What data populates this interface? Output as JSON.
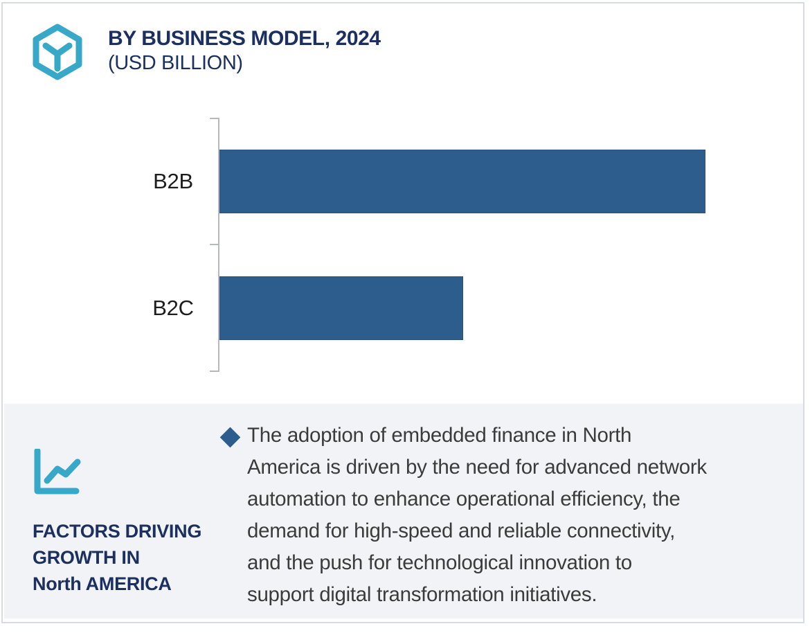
{
  "header": {
    "title": "BY BUSINESS MODEL, 2024",
    "subtitle": "(USD BILLION)",
    "icon": "cube-hexagon",
    "title_color": "#1b3060",
    "accent_teal": "#38a8c9"
  },
  "chart_data": {
    "type": "bar",
    "orientation": "horizontal",
    "title": "BY BUSINESS MODEL, 2024",
    "units_label": "(USD BILLION)",
    "categories": [
      "B2B",
      "B2C"
    ],
    "values_pct_of_max": [
      100,
      50.2
    ],
    "value_labels_shown": false,
    "numeric_axis_shown": false,
    "bar_color": "#2d5d8c",
    "grid": false,
    "legend_position": "none"
  },
  "factors_panel": {
    "background": "#f2f3f7",
    "icon": "line-chart",
    "heading_color": "#1b3060",
    "heading_lines": [
      "FACTORS DRIVING",
      "GROWTH IN",
      "North AMERICA"
    ],
    "bullet_icon": "diamond",
    "bullet_color": "#2d5d8c",
    "bullet_lines": [
      "The adoption of embedded finance in North",
      "America is driven by the need for advanced network",
      "automation to enhance operational efficiency, the",
      "demand for high-speed and reliable connectivity,",
      "and the push for technological innovation to",
      "support digital transformation initiatives."
    ],
    "bullet_text": "The adoption of embedded finance in North America is driven by the need for advanced network automation to enhance operational efficiency, the demand for high-speed and reliable connectivity, and the push for technological innovation to support digital transformation initiatives."
  },
  "card": {
    "border_color": "#d9dbe4",
    "background": "#ffffff"
  }
}
